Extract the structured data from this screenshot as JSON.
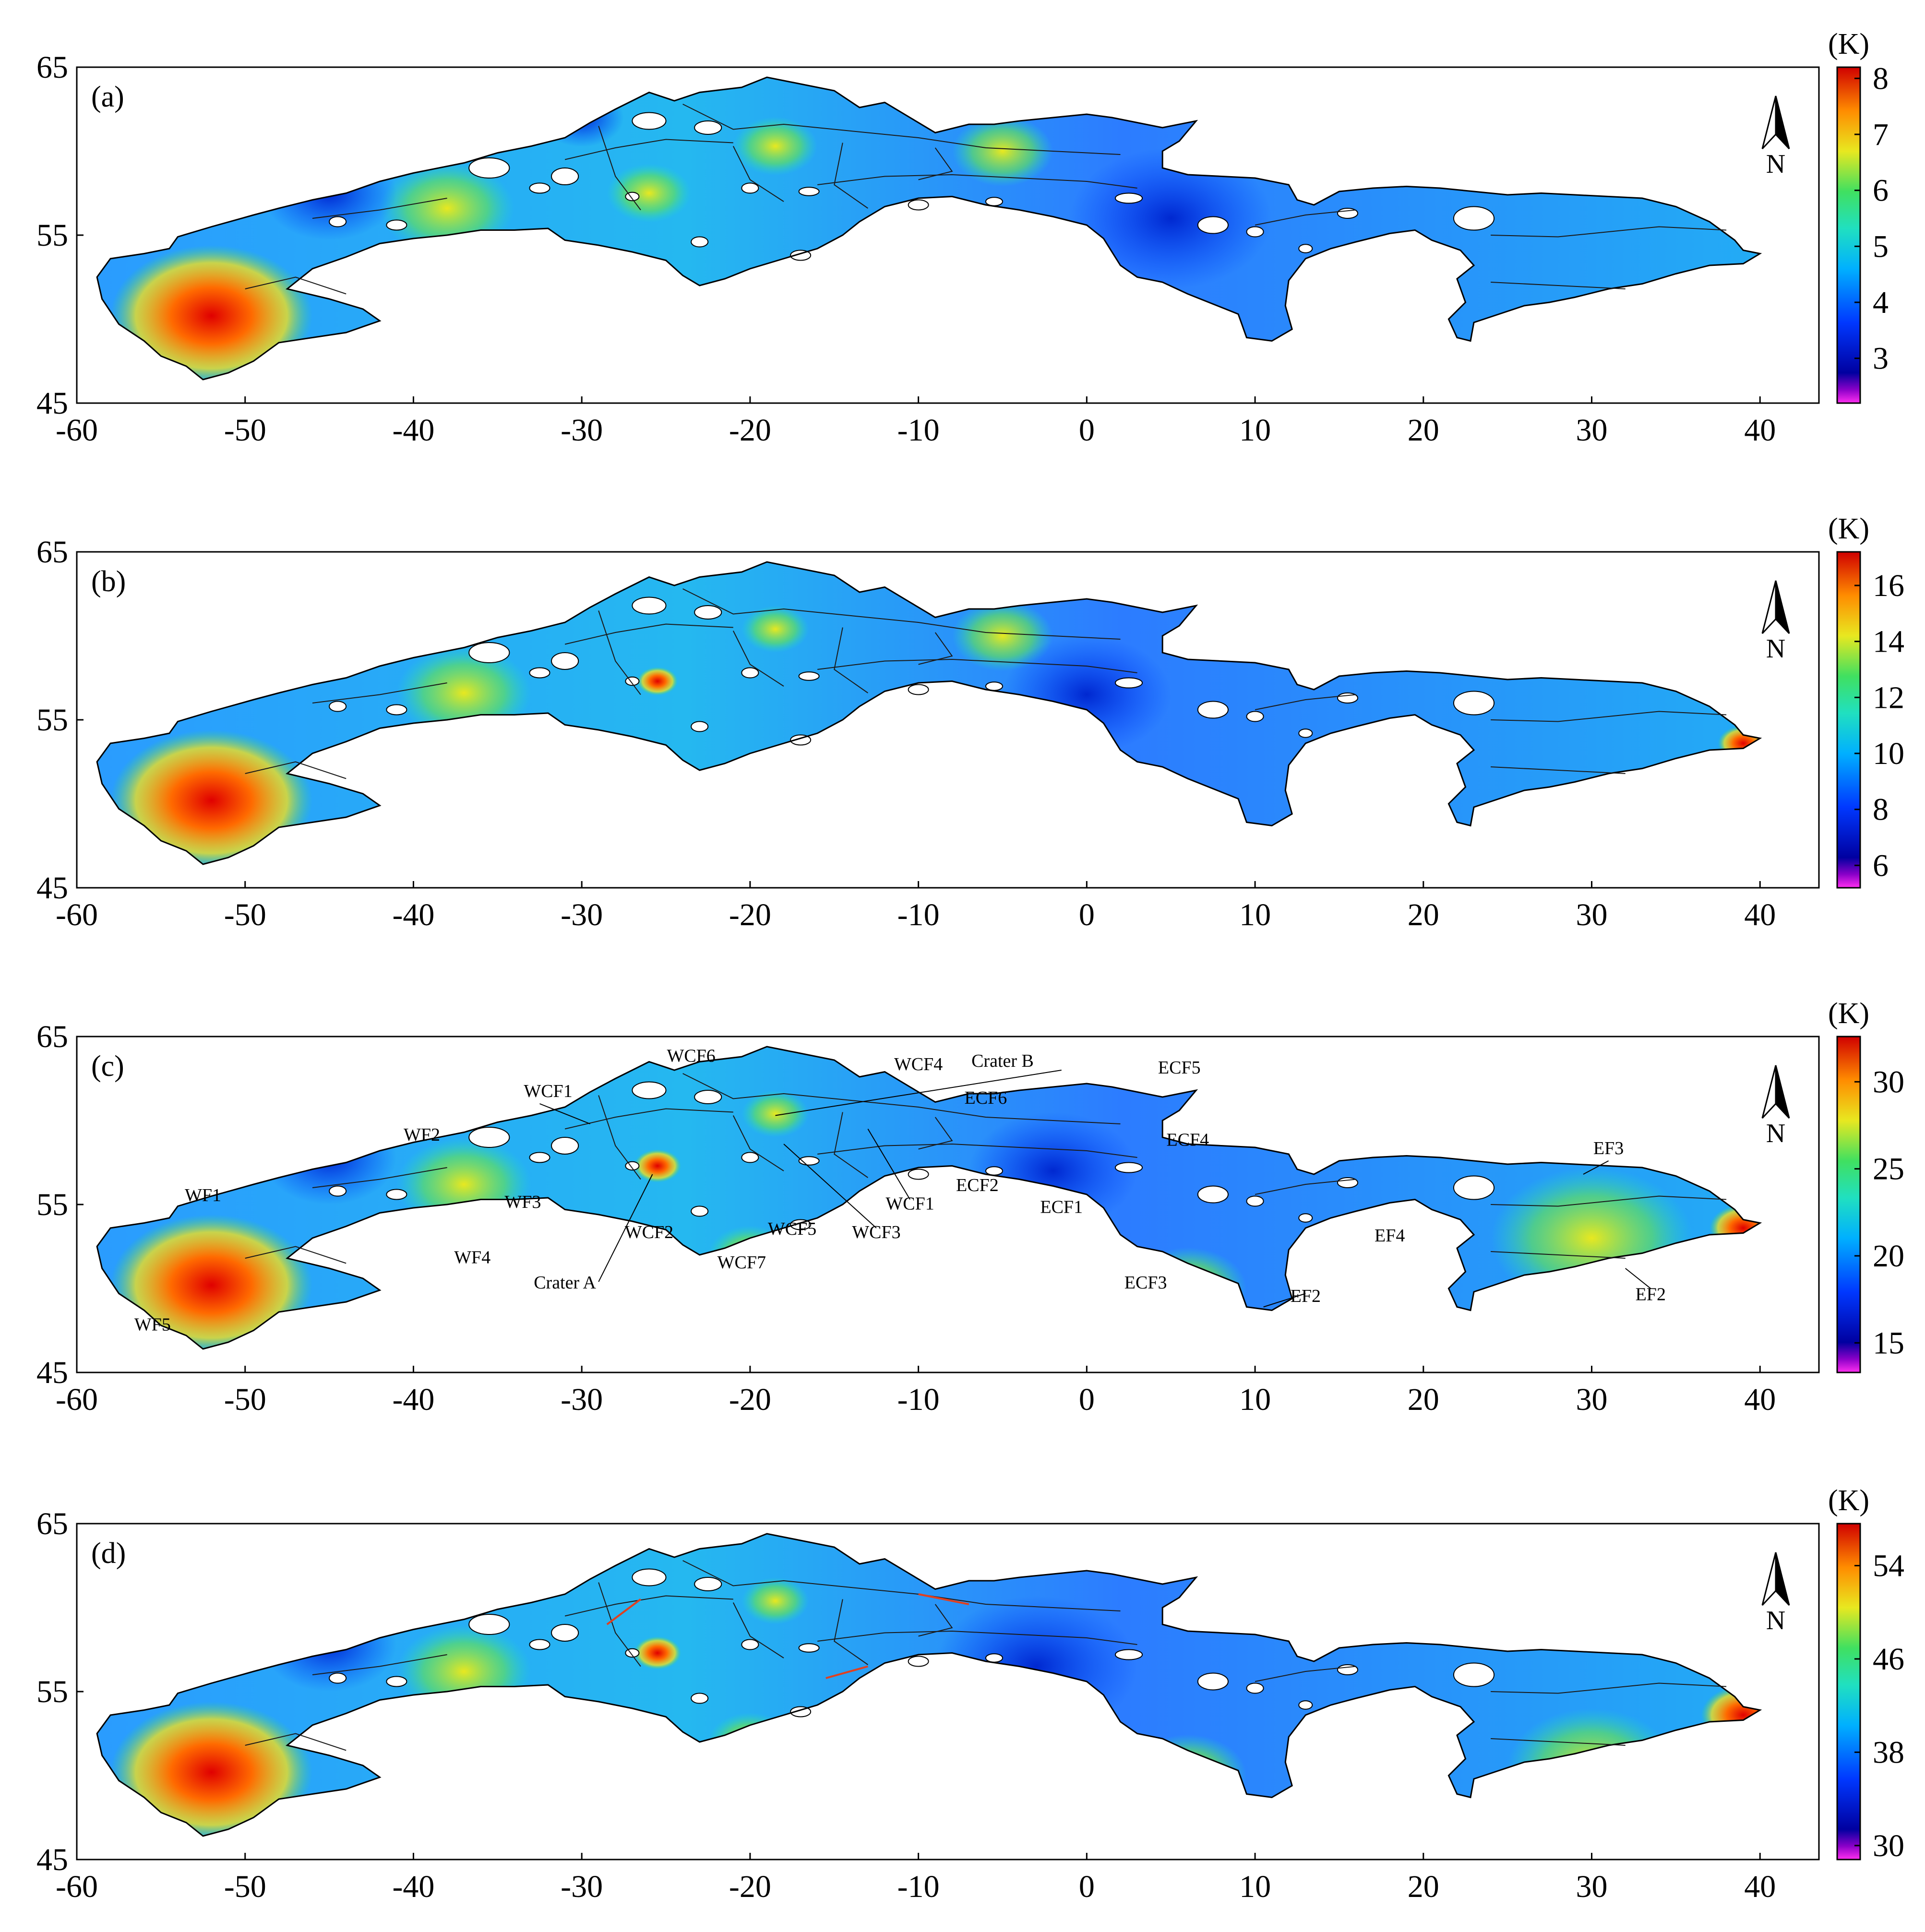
{
  "figure": {
    "panels": [
      {
        "label": "(a)",
        "unit": "(K)",
        "colorbar": {
          "min": 2.2,
          "max": 8.2,
          "ticks": [
            "3",
            "4",
            "5",
            "6",
            "7",
            "8"
          ]
        }
      },
      {
        "label": "(b)",
        "unit": "(K)",
        "colorbar": {
          "min": 5.2,
          "max": 17.2,
          "ticks": [
            "6",
            "8",
            "10",
            "12",
            "14",
            "16"
          ]
        }
      },
      {
        "label": "(c)",
        "unit": "(K)",
        "colorbar": {
          "min": 13.3,
          "max": 32.6,
          "ticks": [
            "15",
            "20",
            "25",
            "30"
          ]
        }
      },
      {
        "label": "(d)",
        "unit": "(K)",
        "colorbar": {
          "min": 28.8,
          "max": 57.6,
          "ticks": [
            "30",
            "38",
            "46",
            "54"
          ]
        }
      }
    ],
    "x_ticks": [
      "-60",
      "-50",
      "-40",
      "-30",
      "-20",
      "-10",
      "0",
      "10",
      "20",
      "30",
      "40"
    ],
    "y_ticks": [
      "65",
      "55",
      "45"
    ],
    "north_label": "N",
    "annotations": [
      {
        "text": "WF1",
        "lon": -52.5,
        "lat": 55.2
      },
      {
        "text": "WF2",
        "lon": -39.5,
        "lat": 58.8
      },
      {
        "text": "WF3",
        "lon": -33.5,
        "lat": 54.8
      },
      {
        "text": "WF4",
        "lon": -36.5,
        "lat": 51.5
      },
      {
        "text": "WF5",
        "lon": -55.5,
        "lat": 47.5
      },
      {
        "text": "WCF1",
        "lon": -32.0,
        "lat": 61.4
      },
      {
        "text": "WCF6",
        "lon": -23.5,
        "lat": 63.5
      },
      {
        "text": "WCF4",
        "lon": -10.0,
        "lat": 63.0
      },
      {
        "text": "Crater B",
        "lon": -5.0,
        "lat": 63.2
      },
      {
        "text": "ECF6",
        "lon": -6.0,
        "lat": 61.0
      },
      {
        "text": "ECF5",
        "lon": 5.5,
        "lat": 62.8
      },
      {
        "text": "ECF4",
        "lon": 6.0,
        "lat": 58.5
      },
      {
        "text": "EF3",
        "lon": 31.0,
        "lat": 58.0
      },
      {
        "text": "WCF2",
        "lon": -26.0,
        "lat": 53.0
      },
      {
        "text": "Crater A",
        "lon": -31.0,
        "lat": 50.0
      },
      {
        "text": "WCF7",
        "lon": -20.5,
        "lat": 51.2
      },
      {
        "text": "WCF5",
        "lon": -17.5,
        "lat": 53.2
      },
      {
        "text": "WCF3",
        "lon": -12.5,
        "lat": 53.0
      },
      {
        "text": "WCF1",
        "lon": -10.5,
        "lat": 54.7
      },
      {
        "text": "ECF2",
        "lon": -6.5,
        "lat": 55.8
      },
      {
        "text": "ECF1",
        "lon": -1.5,
        "lat": 54.5
      },
      {
        "text": "ECF3",
        "lon": 3.5,
        "lat": 50.0
      },
      {
        "text": "EF4",
        "lon": 18.0,
        "lat": 52.8
      },
      {
        "text": "EF2",
        "lon": 13.0,
        "lat": 49.2
      },
      {
        "text": "EF2",
        "lon": 33.5,
        "lat": 49.3
      }
    ]
  }
}
